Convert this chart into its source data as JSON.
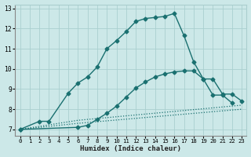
{
  "xlabel": "Humidex (Indice chaleur)",
  "xlim": [
    -0.5,
    23.5
  ],
  "ylim": [
    6.7,
    13.2
  ],
  "yticks": [
    7,
    8,
    9,
    10,
    11,
    12,
    13
  ],
  "xticks": [
    0,
    1,
    2,
    3,
    4,
    5,
    6,
    7,
    8,
    9,
    10,
    11,
    12,
    13,
    14,
    15,
    16,
    17,
    18,
    19,
    20,
    21,
    22,
    23
  ],
  "bg_color": "#cce8e8",
  "grid_color": "#aacfcf",
  "line_color": "#1a7070",
  "series": [
    {
      "x": [
        0,
        2,
        3,
        5,
        6,
        7,
        8,
        9,
        10,
        11,
        12,
        13,
        14,
        15,
        16,
        17,
        18,
        19,
        20,
        21,
        22
      ],
      "y": [
        7.0,
        7.4,
        7.4,
        8.8,
        9.3,
        9.6,
        10.1,
        11.0,
        11.4,
        11.85,
        12.35,
        12.5,
        12.55,
        12.6,
        12.75,
        11.65,
        10.35,
        9.5,
        8.7,
        8.7,
        8.3
      ],
      "marker": "D",
      "markersize": 2.5,
      "linewidth": 1.0,
      "linestyle": "-"
    },
    {
      "x": [
        0,
        6,
        7,
        8,
        9,
        10,
        11,
        12,
        13,
        14,
        15,
        16,
        17,
        18,
        19,
        20,
        21,
        22,
        23
      ],
      "y": [
        7.0,
        7.1,
        7.2,
        7.5,
        7.8,
        8.15,
        8.6,
        9.05,
        9.35,
        9.6,
        9.75,
        9.85,
        9.9,
        9.9,
        9.5,
        9.5,
        8.75,
        8.75,
        8.4
      ],
      "marker": "D",
      "markersize": 2.5,
      "linewidth": 1.0,
      "linestyle": "-"
    },
    {
      "x": [
        0,
        6,
        23
      ],
      "y": [
        7.0,
        7.45,
        8.2
      ],
      "marker": null,
      "markersize": 0,
      "linewidth": 0.9,
      "linestyle": ":"
    },
    {
      "x": [
        0,
        6,
        23
      ],
      "y": [
        7.0,
        7.3,
        8.0
      ],
      "marker": null,
      "markersize": 0,
      "linewidth": 0.9,
      "linestyle": ":"
    }
  ]
}
